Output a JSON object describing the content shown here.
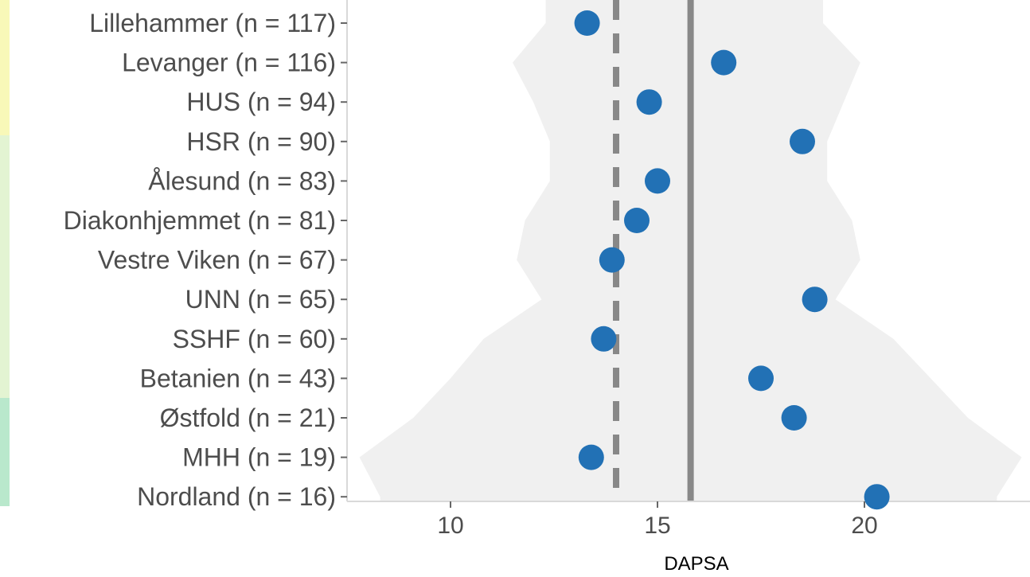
{
  "chart_data": {
    "type": "scatter",
    "title": "",
    "xlabel": "DAPSA",
    "ylabel": "",
    "xlim": [
      7.5,
      24.0
    ],
    "xticks": [
      10,
      15,
      20
    ],
    "xtick_labels": [
      "10",
      "15",
      "20"
    ],
    "grid": false,
    "categories": [
      "Lillehammer (n = 117)",
      "Levanger (n = 116)",
      "HUS (n = 94)",
      "HSR (n = 90)",
      "Ålesund (n = 83)",
      "Diakonhjemmet (n = 81)",
      "Vestre Viken (n = 67)",
      "UNN (n = 65)",
      "SSHF (n = 60)",
      "Betanien (n = 43)",
      "Østfold (n = 21)",
      "MHH (n = 19)",
      "Nordland (n = 16)"
    ],
    "series": [
      {
        "values": [
          13.3,
          16.6,
          14.8,
          18.5,
          15.0,
          14.5,
          13.9,
          18.8,
          13.7,
          17.5,
          18.3,
          13.4,
          20.3
        ],
        "color": "#2271b5"
      }
    ],
    "reference_lines": [
      {
        "x": 15.8,
        "style": "solid",
        "color": "#888888"
      },
      {
        "x": 14.0,
        "style": "dashed",
        "color": "#888888"
      }
    ],
    "band": {
      "color": "#f0f0f0",
      "lower": [
        12.3,
        11.5,
        12.0,
        12.4,
        12.4,
        11.8,
        11.6,
        12.2,
        10.8,
        10.0,
        9.1,
        7.8,
        8.3
      ],
      "upper": [
        19.0,
        19.9,
        19.5,
        19.1,
        19.1,
        19.7,
        19.9,
        19.3,
        20.7,
        21.6,
        22.5,
        23.8,
        23.2
      ]
    }
  }
}
